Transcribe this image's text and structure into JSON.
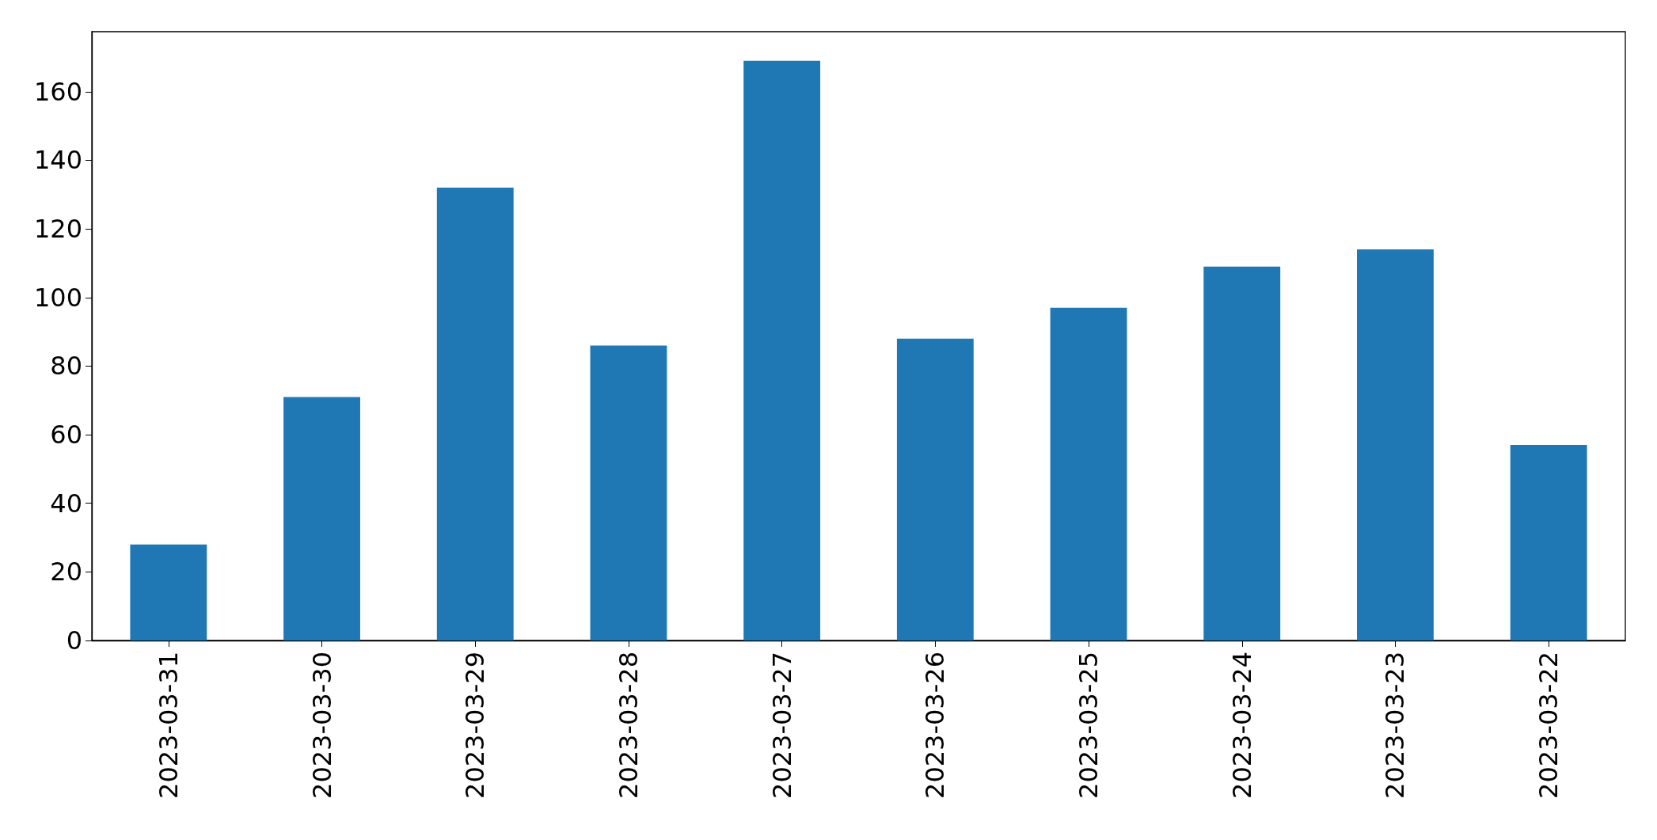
{
  "chart_data": {
    "type": "bar",
    "categories": [
      "2023-03-31",
      "2023-03-30",
      "2023-03-29",
      "2023-03-28",
      "2023-03-27",
      "2023-03-26",
      "2023-03-25",
      "2023-03-24",
      "2023-03-23",
      "2023-03-22"
    ],
    "values": [
      28,
      71,
      132,
      86,
      169,
      88,
      97,
      109,
      114,
      57
    ],
    "color": "#1f77b4",
    "ylim": [
      0,
      177.5
    ],
    "yticks": [
      0,
      20,
      40,
      60,
      80,
      100,
      120,
      140,
      160
    ],
    "grid": false
  }
}
